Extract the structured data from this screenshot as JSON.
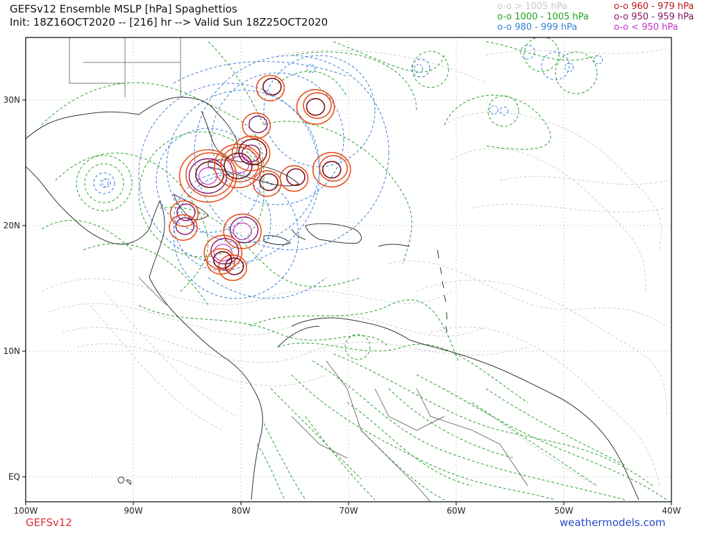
{
  "header": {
    "title": "GEFSv12 Ensemble MSLP [hPa] Spaghettios",
    "subtitle": "Init: 18Z16OCT2020 -- [216] hr --> Valid Sun 18Z25OCT2020"
  },
  "legend": {
    "left": [
      {
        "label": "o-o > 1005 hPa",
        "color": "#c8c8c8"
      },
      {
        "label": "o-o 1000 - 1005 hPa",
        "color": "#1f9e1f"
      },
      {
        "label": "o-o 980 - 999 hPa",
        "color": "#3a7fd6"
      }
    ],
    "right": [
      {
        "label": "o-o 960 - 979 hPa",
        "color": "#c0141c"
      },
      {
        "label": "o-o 950 - 959 hPa",
        "color": "#8a1060"
      },
      {
        "label": "o-o < 950 hPa",
        "color": "#c030c8"
      }
    ]
  },
  "map": {
    "lon_ticks": [
      "100W",
      "90W",
      "80W",
      "70W",
      "60W",
      "50W",
      "40W"
    ],
    "lat_ticks": [
      "30N",
      "20N",
      "10N",
      "EQ"
    ],
    "storms": [
      {
        "lon": -83,
        "lat": 24,
        "rings": [
          "orange",
          "orange",
          "purple",
          "dark",
          "magenta"
        ]
      },
      {
        "lon": -80.2,
        "lat": 24.8,
        "rings": [
          "orange",
          "orange",
          "dark",
          "magenta"
        ]
      },
      {
        "lon": -79,
        "lat": 25.8,
        "rings": [
          "orange",
          "dark",
          "purple"
        ]
      },
      {
        "lon": -77.5,
        "lat": 23.4,
        "rings": [
          "orange",
          "dark"
        ]
      },
      {
        "lon": -78.5,
        "lat": 28,
        "rings": [
          "orange",
          "purple"
        ]
      },
      {
        "lon": -77.2,
        "lat": 31,
        "rings": [
          "orange",
          "dark"
        ]
      },
      {
        "lon": -73,
        "lat": 29.5,
        "rings": [
          "orange",
          "orange",
          "dark"
        ]
      },
      {
        "lon": -71.5,
        "lat": 24.5,
        "rings": [
          "orange",
          "orange",
          "dark"
        ]
      },
      {
        "lon": -75,
        "lat": 23.8,
        "rings": [
          "orange",
          "dark"
        ]
      },
      {
        "lon": -85.2,
        "lat": 21,
        "rings": [
          "orange",
          "purple"
        ]
      },
      {
        "lon": -85.3,
        "lat": 19.9,
        "rings": [
          "orange",
          "purple"
        ]
      },
      {
        "lon": -79.8,
        "lat": 19.6,
        "rings": [
          "orange",
          "purple",
          "magenta"
        ]
      },
      {
        "lon": -81.6,
        "lat": 17.9,
        "rings": [
          "orange",
          "purple",
          "magenta"
        ]
      },
      {
        "lon": -80.7,
        "lat": 16.7,
        "rings": [
          "orange",
          "dark"
        ]
      },
      {
        "lon": -81.8,
        "lat": 17.2,
        "rings": [
          "orange",
          "dark"
        ]
      }
    ],
    "blue_circles": [
      {
        "lon": -92.5,
        "lat": 23.4
      },
      {
        "lon": -73.5,
        "lat": 32.5
      },
      {
        "lon": -63.5,
        "lat": 32.5
      },
      {
        "lon": -56.5,
        "lat": 29.2
      },
      {
        "lon": -49.5,
        "lat": 32.6
      },
      {
        "lon": -46.8,
        "lat": 33.2
      }
    ]
  },
  "footer": {
    "model": "GEFSv12",
    "site": "weathermodels.com"
  }
}
